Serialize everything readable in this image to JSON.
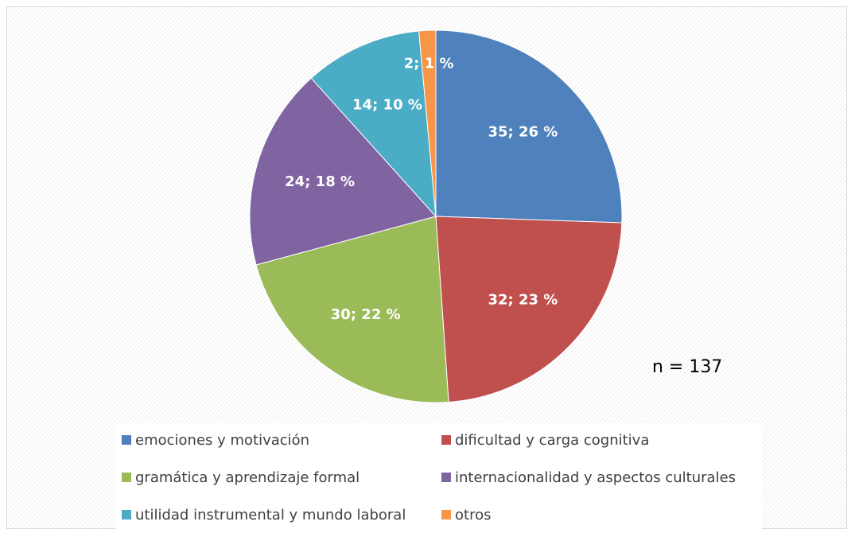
{
  "chart_data": {
    "type": "pie",
    "categories": [
      "emociones y motivación",
      "dificultad y carga cognitiva",
      "gramática y aprendizaje formal",
      "internacionalidad y aspectos culturales",
      "utilidad instrumental y mundo laboral",
      "otros"
    ],
    "values": [
      35,
      32,
      30,
      24,
      14,
      2
    ],
    "value_labels": [
      "35; 26 %",
      "32; 23 %",
      "30; 22 %",
      "24; 18 %",
      "14; 10 %",
      "2; 1 %"
    ],
    "colors": [
      "#4f81bd",
      "#c0504d",
      "#9bbb59",
      "#8064a2",
      "#4bacc6",
      "#f79646"
    ],
    "annotations": [
      "n = 137"
    ],
    "legend": "bottom"
  }
}
